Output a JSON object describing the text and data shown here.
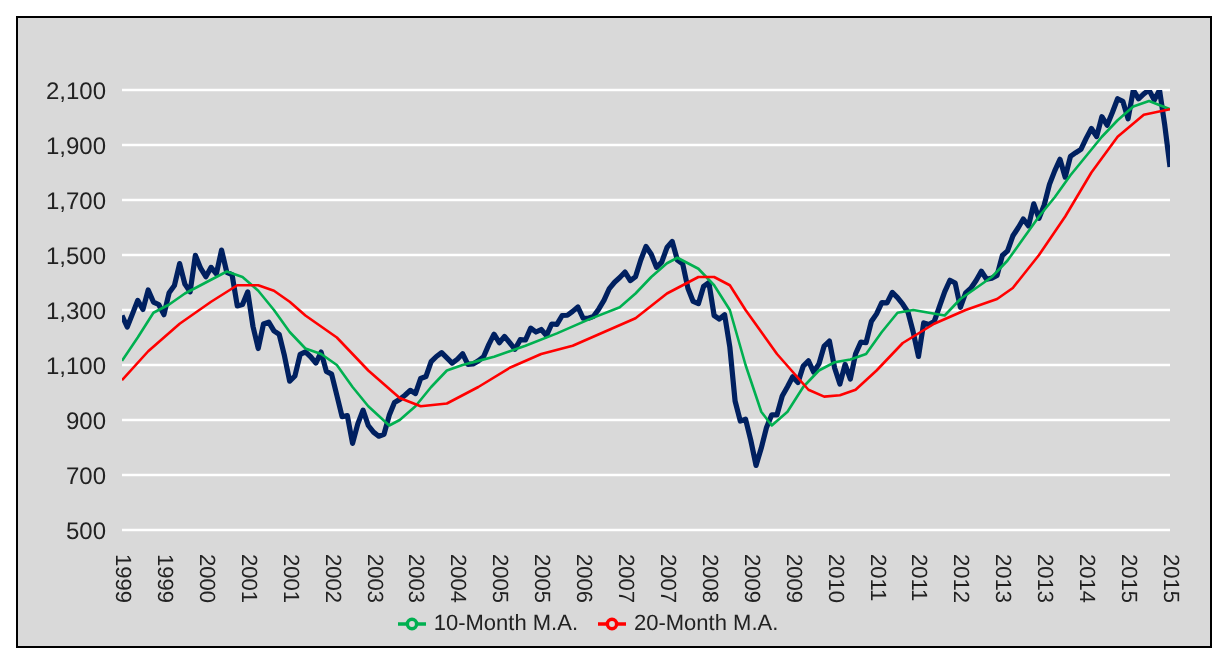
{
  "chart_data": {
    "type": "line",
    "x": [
      "1999-01",
      "1999-02",
      "1999-03",
      "1999-04",
      "1999-05",
      "1999-06",
      "1999-07",
      "1999-08",
      "1999-09",
      "1999-10",
      "1999-11",
      "1999-12",
      "2000-01",
      "2000-02",
      "2000-03",
      "2000-04",
      "2000-05",
      "2000-06",
      "2000-07",
      "2000-08",
      "2000-09",
      "2000-10",
      "2000-11",
      "2000-12",
      "2001-01",
      "2001-02",
      "2001-03",
      "2001-04",
      "2001-05",
      "2001-06",
      "2001-07",
      "2001-08",
      "2001-09",
      "2001-10",
      "2001-11",
      "2001-12",
      "2002-01",
      "2002-02",
      "2002-03",
      "2002-04",
      "2002-05",
      "2002-06",
      "2002-07",
      "2002-08",
      "2002-09",
      "2002-10",
      "2002-11",
      "2002-12",
      "2003-01",
      "2003-02",
      "2003-03",
      "2003-04",
      "2003-05",
      "2003-06",
      "2003-07",
      "2003-08",
      "2003-09",
      "2003-10",
      "2003-11",
      "2003-12",
      "2004-01",
      "2004-02",
      "2004-03",
      "2004-04",
      "2004-05",
      "2004-06",
      "2004-07",
      "2004-08",
      "2004-09",
      "2004-10",
      "2004-11",
      "2004-12",
      "2005-01",
      "2005-02",
      "2005-03",
      "2005-04",
      "2005-05",
      "2005-06",
      "2005-07",
      "2005-08",
      "2005-09",
      "2005-10",
      "2005-11",
      "2005-12",
      "2006-01",
      "2006-02",
      "2006-03",
      "2006-04",
      "2006-05",
      "2006-06",
      "2006-07",
      "2006-08",
      "2006-09",
      "2006-10",
      "2006-11",
      "2006-12",
      "2007-01",
      "2007-02",
      "2007-03",
      "2007-04",
      "2007-05",
      "2007-06",
      "2007-07",
      "2007-08",
      "2007-09",
      "2007-10",
      "2007-11",
      "2007-12",
      "2008-01",
      "2008-02",
      "2008-03",
      "2008-04",
      "2008-05",
      "2008-06",
      "2008-07",
      "2008-08",
      "2008-09",
      "2008-10",
      "2008-11",
      "2008-12",
      "2009-01",
      "2009-02",
      "2009-03",
      "2009-04",
      "2009-05",
      "2009-06",
      "2009-07",
      "2009-08",
      "2009-09",
      "2009-10",
      "2009-11",
      "2009-12",
      "2010-01",
      "2010-02",
      "2010-03",
      "2010-04",
      "2010-05",
      "2010-06",
      "2010-07",
      "2010-08",
      "2010-09",
      "2010-10",
      "2010-11",
      "2010-12",
      "2011-01",
      "2011-02",
      "2011-03",
      "2011-04",
      "2011-05",
      "2011-06",
      "2011-07",
      "2011-08",
      "2011-09",
      "2011-10",
      "2011-11",
      "2011-12",
      "2012-01",
      "2012-02",
      "2012-03",
      "2012-04",
      "2012-05",
      "2012-06",
      "2012-07",
      "2012-08",
      "2012-09",
      "2012-10",
      "2012-11",
      "2012-12",
      "2013-01",
      "2013-02",
      "2013-03",
      "2013-04",
      "2013-05",
      "2013-06",
      "2013-07",
      "2013-08",
      "2013-09",
      "2013-10",
      "2013-11",
      "2013-12",
      "2014-01",
      "2014-02",
      "2014-03",
      "2014-04",
      "2014-05",
      "2014-06",
      "2014-07",
      "2014-08",
      "2014-09",
      "2014-10",
      "2014-11",
      "2014-12",
      "2015-01",
      "2015-02",
      "2015-03",
      "2015-04",
      "2015-05",
      "2015-06",
      "2015-07",
      "2015-08",
      "2015-09"
    ],
    "series": [
      {
        "color": "#002060",
        "values": [
          1280,
          1238,
          1286,
          1335,
          1302,
          1373,
          1329,
          1320,
          1283,
          1363,
          1389,
          1469,
          1394,
          1366,
          1499,
          1452,
          1421,
          1455,
          1431,
          1518,
          1437,
          1429,
          1315,
          1320,
          1366,
          1240,
          1160,
          1249,
          1256,
          1224,
          1211,
          1134,
          1041,
          1060,
          1139,
          1148,
          1130,
          1107,
          1147,
          1077,
          1067,
          990,
          912,
          916,
          815,
          886,
          936,
          880,
          856,
          841,
          848,
          917,
          964,
          975,
          990,
          1008,
          996,
          1051,
          1058,
          1112,
          1131,
          1145,
          1126,
          1107,
          1121,
          1141,
          1102,
          1104,
          1115,
          1130,
          1174,
          1212,
          1181,
          1204,
          1181,
          1157,
          1192,
          1191,
          1234,
          1220,
          1229,
          1207,
          1249,
          1248,
          1280,
          1281,
          1295,
          1311,
          1270,
          1270,
          1277,
          1304,
          1336,
          1378,
          1401,
          1418,
          1438,
          1407,
          1421,
          1482,
          1531,
          1503,
          1455,
          1474,
          1527,
          1549,
          1481,
          1468,
          1379,
          1331,
          1323,
          1386,
          1400,
          1280,
          1267,
          1283,
          1165,
          969,
          896,
          903,
          826,
          735,
          798,
          873,
          919,
          919,
          987,
          1021,
          1057,
          1036,
          1096,
          1115,
          1074,
          1104,
          1169,
          1187,
          1089,
          1031,
          1102,
          1049,
          1141,
          1183,
          1181,
          1258,
          1286,
          1327,
          1326,
          1364,
          1345,
          1321,
          1292,
          1219,
          1131,
          1253,
          1247,
          1258,
          1312,
          1366,
          1408,
          1398,
          1310,
          1362,
          1379,
          1407,
          1441,
          1412,
          1416,
          1426,
          1498,
          1515,
          1569,
          1598,
          1631,
          1606,
          1686,
          1633,
          1682,
          1757,
          1806,
          1848,
          1783,
          1859,
          1872,
          1884,
          1924,
          1960,
          1931,
          2003,
          1972,
          2018,
          2068,
          2059,
          1995,
          2100,
          2068,
          2086,
          2100,
          2063,
          2100,
          1972,
          1820
        ]
      },
      {
        "name": "10-Month M.A.",
        "color": "#00b050",
        "x": [
          "1999-01",
          "1999-04",
          "1999-07",
          "1999-10",
          "2000-01",
          "2000-04",
          "2000-07",
          "2000-09",
          "2000-12",
          "2001-03",
          "2001-06",
          "2001-09",
          "2001-12",
          "2002-03",
          "2002-06",
          "2002-09",
          "2002-12",
          "2003-04",
          "2003-06",
          "2003-09",
          "2003-12",
          "2004-03",
          "2004-06",
          "2004-09",
          "2004-12",
          "2005-06",
          "2005-12",
          "2006-06",
          "2006-12",
          "2007-03",
          "2007-06",
          "2007-09",
          "2007-11",
          "2008-03",
          "2008-06",
          "2008-09",
          "2008-12",
          "2009-03",
          "2009-05",
          "2009-08",
          "2009-11",
          "2010-02",
          "2010-05",
          "2010-08",
          "2010-11",
          "2011-02",
          "2011-05",
          "2011-08",
          "2011-11",
          "2012-02",
          "2012-05",
          "2012-08",
          "2012-11",
          "2013-02",
          "2013-05",
          "2013-08",
          "2013-11",
          "2014-02",
          "2014-05",
          "2014-08",
          "2014-11",
          "2015-02",
          "2015-05",
          "2015-09"
        ],
        "values": [
          1115,
          1200,
          1290,
          1320,
          1360,
          1390,
          1420,
          1440,
          1420,
          1370,
          1300,
          1220,
          1160,
          1140,
          1100,
          1020,
          950,
          880,
          900,
          950,
          1020,
          1080,
          1100,
          1115,
          1130,
          1170,
          1215,
          1265,
          1310,
          1360,
          1420,
          1470,
          1490,
          1450,
          1390,
          1300,
          1100,
          930,
          880,
          930,
          1020,
          1080,
          1110,
          1120,
          1140,
          1220,
          1290,
          1300,
          1290,
          1280,
          1340,
          1380,
          1420,
          1480,
          1560,
          1640,
          1710,
          1790,
          1860,
          1930,
          1990,
          2040,
          2060,
          2030
        ]
      },
      {
        "name": "20-Month M.A.",
        "color": "#ff0000",
        "x": [
          "1999-01",
          "1999-06",
          "1999-12",
          "2000-06",
          "2000-11",
          "2001-03",
          "2001-06",
          "2001-09",
          "2001-12",
          "2002-06",
          "2002-12",
          "2003-06",
          "2003-10",
          "2004-03",
          "2004-09",
          "2005-03",
          "2005-09",
          "2006-03",
          "2006-09",
          "2007-03",
          "2007-09",
          "2008-03",
          "2008-06",
          "2008-09",
          "2008-12",
          "2009-06",
          "2009-12",
          "2010-03",
          "2010-06",
          "2010-09",
          "2011-01",
          "2011-06",
          "2011-12",
          "2012-06",
          "2012-12",
          "2013-03",
          "2013-08",
          "2014-01",
          "2014-06",
          "2014-11",
          "2015-04",
          "2015-09"
        ],
        "values": [
          1045,
          1150,
          1250,
          1330,
          1390,
          1390,
          1370,
          1330,
          1280,
          1200,
          1080,
          980,
          950,
          960,
          1020,
          1090,
          1140,
          1170,
          1220,
          1270,
          1360,
          1420,
          1420,
          1390,
          1300,
          1140,
          1010,
          985,
          990,
          1010,
          1080,
          1180,
          1250,
          1300,
          1340,
          1380,
          1500,
          1640,
          1800,
          1930,
          2010,
          2030
        ]
      }
    ],
    "xlim": [
      "1999-01",
      "2015-09"
    ],
    "xticks": [
      {
        "value": "1999-01",
        "label": "1999"
      },
      {
        "value": "1999-09",
        "label": "1999"
      },
      {
        "value": "2000-05",
        "label": "2000"
      },
      {
        "value": "2001-01",
        "label": "2001"
      },
      {
        "value": "2001-09",
        "label": "2001"
      },
      {
        "value": "2002-05",
        "label": "2002"
      },
      {
        "value": "2003-01",
        "label": "2003"
      },
      {
        "value": "2003-09",
        "label": "2003"
      },
      {
        "value": "2004-05",
        "label": "2004"
      },
      {
        "value": "2005-01",
        "label": "2005"
      },
      {
        "value": "2005-09",
        "label": "2005"
      },
      {
        "value": "2006-05",
        "label": "2006"
      },
      {
        "value": "2007-01",
        "label": "2007"
      },
      {
        "value": "2007-09",
        "label": "2007"
      },
      {
        "value": "2008-05",
        "label": "2008"
      },
      {
        "value": "2009-01",
        "label": "2009"
      },
      {
        "value": "2009-09",
        "label": "2009"
      },
      {
        "value": "2010-05",
        "label": "2010"
      },
      {
        "value": "2011-01",
        "label": "2011"
      },
      {
        "value": "2011-09",
        "label": "2011"
      },
      {
        "value": "2012-05",
        "label": "2012"
      },
      {
        "value": "2013-01",
        "label": "2013"
      },
      {
        "value": "2013-09",
        "label": "2013"
      },
      {
        "value": "2014-05",
        "label": "2014"
      },
      {
        "value": "2015-01",
        "label": "2015"
      },
      {
        "value": "2015-09",
        "label": "2015"
      }
    ],
    "ylim": [
      500,
      2100
    ],
    "yticks": [
      500,
      700,
      900,
      {
        "value": 1100,
        "label": "1,100"
      },
      {
        "value": 1300,
        "label": "1,300"
      },
      {
        "value": 1500,
        "label": "1,500"
      },
      {
        "value": 1700,
        "label": "1,700"
      },
      {
        "value": 1900,
        "label": "1,900"
      },
      {
        "value": 2100,
        "label": "2,100"
      }
    ],
    "grid": "y",
    "legend": "bottom",
    "marker": "none",
    "line_style": "solid"
  }
}
